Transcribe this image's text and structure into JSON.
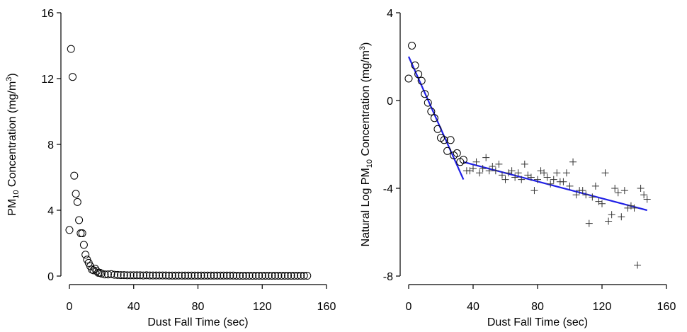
{
  "chart_data": [
    {
      "type": "scatter",
      "title": "",
      "xlabel": "Dust Fall Time (sec)",
      "ylabel_main": "PM",
      "ylabel_sub": "10",
      "ylabel_rest": " Concentration (mg/m",
      "ylabel_sup": "3",
      "ylabel_end": ")",
      "xlim": [
        0,
        160
      ],
      "ylim": [
        0,
        16
      ],
      "xticks": [
        0,
        40,
        80,
        120,
        160
      ],
      "xtick_labels": [
        "0",
        "40",
        "80",
        "120",
        "160"
      ],
      "yticks": [
        0,
        4,
        8,
        12,
        16
      ],
      "ytick_labels": [
        "0",
        "4",
        "8",
        "12",
        "16"
      ],
      "grid": false,
      "series": [
        {
          "marker": "circle",
          "color": "#000000",
          "x": [
            0,
            1,
            2,
            3,
            4,
            5,
            6,
            7,
            8,
            9,
            10,
            11,
            12,
            13,
            14,
            15,
            16,
            17,
            18,
            19,
            20,
            22,
            24,
            26,
            28,
            30,
            32,
            34,
            36,
            38,
            40,
            42,
            44,
            46,
            48,
            50,
            52,
            54,
            56,
            58,
            60,
            62,
            64,
            66,
            68,
            70,
            72,
            74,
            76,
            78,
            80,
            82,
            84,
            86,
            88,
            90,
            92,
            94,
            96,
            98,
            100,
            102,
            104,
            106,
            108,
            110,
            112,
            114,
            116,
            118,
            120,
            122,
            124,
            126,
            128,
            130,
            132,
            134,
            136,
            138,
            140,
            142,
            144,
            146,
            148
          ],
          "y": [
            2.8,
            13.8,
            12.1,
            6.1,
            5.0,
            4.5,
            3.4,
            2.6,
            2.6,
            1.9,
            1.3,
            1.0,
            0.8,
            0.6,
            0.4,
            0.35,
            0.45,
            0.3,
            0.2,
            0.2,
            0.15,
            0.1,
            0.1,
            0.12,
            0.08,
            0.07,
            0.06,
            0.06,
            0.05,
            0.05,
            0.05,
            0.05,
            0.05,
            0.04,
            0.05,
            0.04,
            0.04,
            0.04,
            0.04,
            0.04,
            0.04,
            0.03,
            0.03,
            0.03,
            0.03,
            0.03,
            0.03,
            0.03,
            0.03,
            0.03,
            0.03,
            0.03,
            0.03,
            0.03,
            0.03,
            0.03,
            0.03,
            0.03,
            0.03,
            0.03,
            0.03,
            0.03,
            0.02,
            0.02,
            0.02,
            0.02,
            0.02,
            0.02,
            0.02,
            0.02,
            0.02,
            0.02,
            0.02,
            0.02,
            0.02,
            0.02,
            0.02,
            0.02,
            0.02,
            0.02,
            0.02,
            0.02,
            0.02,
            0.02,
            0.02
          ]
        }
      ]
    },
    {
      "type": "scatter",
      "title": "",
      "xlabel": "Dust Fall Time (sec)",
      "ylabel_main": "Natural Log PM",
      "ylabel_sub": "10",
      "ylabel_rest": " Concentration (mg/m",
      "ylabel_sup": "3",
      "ylabel_end": ")",
      "xlim": [
        0,
        160
      ],
      "ylim": [
        -8,
        4
      ],
      "xticks": [
        0,
        40,
        80,
        120,
        160
      ],
      "xtick_labels": [
        "0",
        "40",
        "80",
        "120",
        "160"
      ],
      "yticks": [
        -8,
        -4,
        0,
        4
      ],
      "ytick_labels": [
        "-8",
        "-4",
        "0",
        "4"
      ],
      "grid": false,
      "series": [
        {
          "marker": "circle",
          "color": "#000000",
          "x": [
            0,
            2,
            4,
            6,
            8,
            10,
            12,
            14,
            16,
            18,
            20,
            22,
            24,
            26,
            28,
            30,
            32,
            34
          ],
          "y": [
            1.0,
            2.5,
            1.6,
            1.2,
            0.9,
            0.3,
            -0.1,
            -0.5,
            -0.8,
            -1.3,
            -1.7,
            -1.8,
            -2.3,
            -1.8,
            -2.5,
            -2.4,
            -2.8,
            -2.7
          ]
        },
        {
          "marker": "plus",
          "color": "#333333",
          "x": [
            36,
            38,
            40,
            42,
            44,
            46,
            48,
            50,
            52,
            54,
            56,
            58,
            60,
            62,
            64,
            66,
            68,
            70,
            72,
            74,
            76,
            78,
            80,
            82,
            84,
            86,
            88,
            90,
            92,
            94,
            96,
            98,
            100,
            102,
            104,
            106,
            108,
            110,
            112,
            114,
            116,
            118,
            120,
            122,
            124,
            126,
            128,
            130,
            132,
            134,
            136,
            138,
            140,
            142,
            144,
            146,
            148
          ],
          "y": [
            -3.2,
            -3.2,
            -3.1,
            -2.8,
            -3.3,
            -3.1,
            -2.6,
            -3.2,
            -3.0,
            -3.2,
            -2.9,
            -3.4,
            -3.6,
            -3.3,
            -3.2,
            -3.5,
            -3.3,
            -3.6,
            -2.9,
            -3.4,
            -3.5,
            -4.1,
            -3.6,
            -3.2,
            -3.3,
            -3.5,
            -3.8,
            -3.6,
            -3.3,
            -3.7,
            -3.7,
            -3.3,
            -3.9,
            -2.8,
            -4.3,
            -4.1,
            -4.1,
            -4.3,
            -5.6,
            -4.4,
            -3.9,
            -4.6,
            -4.7,
            -3.3,
            -5.5,
            -5.2,
            -4.0,
            -4.2,
            -5.3,
            -4.1,
            -4.9,
            -4.8,
            -4.9,
            -7.5,
            -4.0,
            -4.3,
            -4.5
          ]
        }
      ],
      "fit_lines": [
        {
          "color": "#1f1fe6",
          "x": [
            0,
            34
          ],
          "y": [
            2.0,
            -3.6
          ]
        },
        {
          "color": "#1f1fe6",
          "x": [
            34,
            148
          ],
          "y": [
            -2.8,
            -5.0
          ]
        }
      ]
    }
  ]
}
